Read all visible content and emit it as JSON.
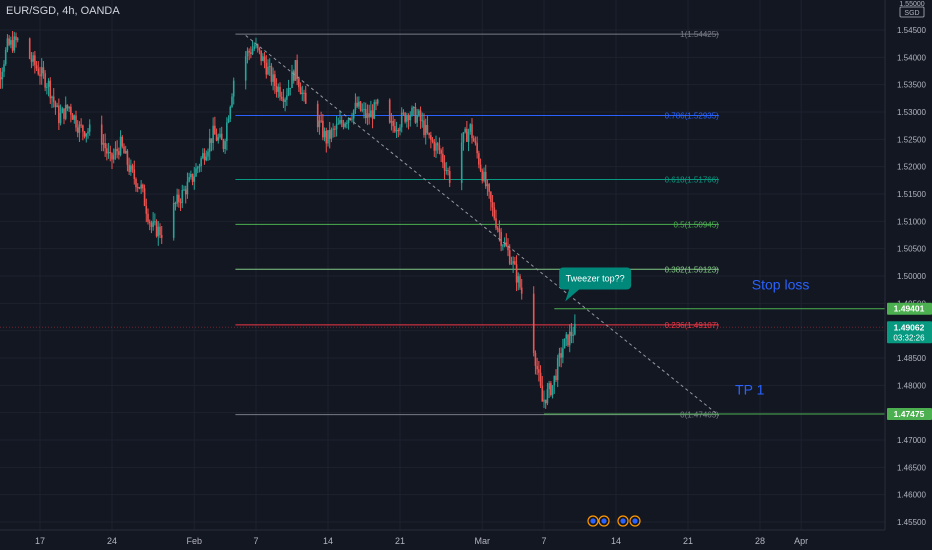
{
  "header": {
    "symbol_line": "EUR/SGD, 4h, OANDA"
  },
  "axis": {
    "currency_top": "1.55000",
    "currency_label": "SGD"
  },
  "chart_data": {
    "type": "candlestick",
    "symbol": "EUR/SGD",
    "timeframe": "4h",
    "source": "OANDA",
    "ylim": [
      1.453,
      1.556
    ],
    "y_ticks": [
      "1.54500",
      "1.54000",
      "1.53500",
      "1.53000",
      "1.52500",
      "1.52000",
      "1.51500",
      "1.51000",
      "1.50500",
      "1.50000",
      "1.49500",
      "1.49000",
      "1.48500",
      "1.48000",
      "1.47500",
      "1.47000",
      "1.46500",
      "1.46000",
      "1.45500"
    ],
    "x_ticks": [
      {
        "label": "17",
        "date": "2022-01-17"
      },
      {
        "label": "24",
        "date": "2022-01-24"
      },
      {
        "label": "Feb",
        "date": "2022-02-01"
      },
      {
        "label": "7",
        "date": "2022-02-07"
      },
      {
        "label": "14",
        "date": "2022-02-14"
      },
      {
        "label": "21",
        "date": "2022-02-21"
      },
      {
        "label": "Mar",
        "date": "2022-03-01"
      },
      {
        "label": "7",
        "date": "2022-03-07"
      },
      {
        "label": "14",
        "date": "2022-03-14"
      },
      {
        "label": "21",
        "date": "2022-03-21"
      },
      {
        "label": "28",
        "date": "2022-03-28"
      },
      {
        "label": "Apr",
        "date": "2022-04-01"
      }
    ],
    "price_path": [
      [
        "2022-01-12",
        1.528
      ],
      [
        "2022-01-14",
        1.542
      ],
      [
        "2022-01-15",
        1.543
      ],
      [
        "2022-01-18",
        1.535
      ],
      [
        "2022-01-19",
        1.529
      ],
      [
        "2022-01-20",
        1.531
      ],
      [
        "2022-01-21",
        1.527
      ],
      [
        "2022-01-23",
        1.526
      ],
      [
        "2022-01-24",
        1.521
      ],
      [
        "2022-01-25",
        1.524
      ],
      [
        "2022-01-26",
        1.519
      ],
      [
        "2022-01-27",
        1.516
      ],
      [
        "2022-01-28",
        1.509
      ],
      [
        "2022-01-29",
        1.508
      ],
      [
        "2022-01-30",
        1.512
      ],
      [
        "2022-01-31",
        1.515
      ],
      [
        "2022-02-01",
        1.518
      ],
      [
        "2022-02-02",
        1.522
      ],
      [
        "2022-02-03",
        1.526
      ],
      [
        "2022-02-04",
        1.524
      ],
      [
        "2022-02-05",
        1.536
      ],
      [
        "2022-02-06",
        1.54
      ],
      [
        "2022-02-07",
        1.542
      ],
      [
        "2022-02-08",
        1.539
      ],
      [
        "2022-02-09",
        1.535
      ],
      [
        "2022-02-10",
        1.533
      ],
      [
        "2022-02-11",
        1.538
      ],
      [
        "2022-02-12",
        1.531
      ],
      [
        "2022-02-13",
        1.529
      ],
      [
        "2022-02-14",
        1.525
      ],
      [
        "2022-02-15",
        1.527
      ],
      [
        "2022-02-16",
        1.529
      ],
      [
        "2022-02-17",
        1.531
      ],
      [
        "2022-02-18",
        1.529
      ],
      [
        "2022-02-19",
        1.531
      ],
      [
        "2022-02-20",
        1.527
      ],
      [
        "2022-02-21",
        1.528
      ],
      [
        "2022-02-22",
        1.53
      ],
      [
        "2022-02-23",
        1.529
      ],
      [
        "2022-02-24",
        1.525
      ],
      [
        "2022-02-25",
        1.523
      ],
      [
        "2022-02-26",
        1.518
      ],
      [
        "2022-02-27",
        1.524
      ],
      [
        "2022-02-28",
        1.527
      ],
      [
        "2022-03-01",
        1.52
      ],
      [
        "2022-03-02",
        1.513
      ],
      [
        "2022-03-03",
        1.507
      ],
      [
        "2022-03-04",
        1.503
      ],
      [
        "2022-03-05",
        1.497
      ],
      [
        "2022-03-06",
        1.489
      ],
      [
        "2022-03-07",
        1.477
      ],
      [
        "2022-03-08",
        1.48
      ],
      [
        "2022-03-09",
        1.487
      ],
      [
        "2022-03-10",
        1.49
      ]
    ],
    "fibonacci": {
      "levels": [
        {
          "label": "1(1.54425)",
          "value": 1.54425,
          "color": "#787b86"
        },
        {
          "label": "0.786(1.52935)",
          "value": 1.52935,
          "color": "#2962ff"
        },
        {
          "label": "0.618(1.51766)",
          "value": 1.51766,
          "color": "#089981"
        },
        {
          "label": "0.5(1.50945)",
          "value": 1.50945,
          "color": "#4caf50"
        },
        {
          "label": "0.382(1.50123)",
          "value": 1.50123,
          "color": "#81c784"
        },
        {
          "label": "0.236(1.49107)",
          "value": 1.49107,
          "color": "#f23645"
        },
        {
          "label": "0(1.47465)",
          "value": 1.47465,
          "color": "#787b86"
        }
      ],
      "start_date": "2022-02-05",
      "end_date": "2022-03-24"
    },
    "trend_line": {
      "from": [
        "2022-02-06",
        1.544
      ],
      "to": [
        "2022-03-24",
        1.4745
      ]
    },
    "horizontal_lines": [
      {
        "value": 1.49401,
        "color": "#4caf50",
        "from_date": "2022-03-08"
      },
      {
        "value": 1.47475,
        "color": "#4caf50",
        "from_date": "2022-03-07"
      }
    ],
    "price_tags": [
      {
        "value": 1.49401,
        "label": "1.49401",
        "bg": "#4caf50"
      },
      {
        "value": 1.49062,
        "label": "1.49062",
        "sub": "03:32:26",
        "bg": "#089981"
      },
      {
        "value": 1.47475,
        "label": "1.47475",
        "bg": "#4caf50"
      }
    ],
    "annotations": [
      {
        "text": "Tweezer top??",
        "date": "2022-03-11",
        "value": 1.499,
        "style": "callout"
      },
      {
        "text": "Stop loss",
        "date": "2022-03-30",
        "value": 1.4975,
        "style": "text",
        "color": "#2962ff"
      },
      {
        "text": "TP 1",
        "date": "2022-03-27",
        "value": 1.4783,
        "style": "text",
        "color": "#2962ff"
      }
    ]
  }
}
